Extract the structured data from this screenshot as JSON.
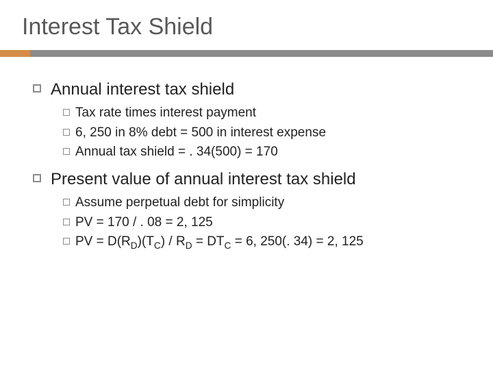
{
  "title": "Interest Tax Shield",
  "accent_color": "#d38d47",
  "rule_color": "#8b8b8b",
  "text_color": "#222222",
  "title_color": "#595959",
  "bullets": [
    {
      "text": "Annual interest tax shield",
      "sub": [
        {
          "text": "Tax rate times interest payment"
        },
        {
          "text": "6, 250 in 8% debt = 500 in interest expense"
        },
        {
          "text": "Annual tax shield = . 34(500) = 170"
        }
      ]
    },
    {
      "text": "Present value of annual interest tax shield",
      "sub": [
        {
          "text": "Assume perpetual debt for simplicity"
        },
        {
          "text": "PV = 170 / . 08 = 2, 125"
        },
        {
          "html": "PV = D(R<sub>D</sub>)(T<sub>C</sub>) / R<sub>D</sub> = DT<sub>C</sub> = 6, 250(. 34) = 2, 125"
        }
      ]
    }
  ]
}
